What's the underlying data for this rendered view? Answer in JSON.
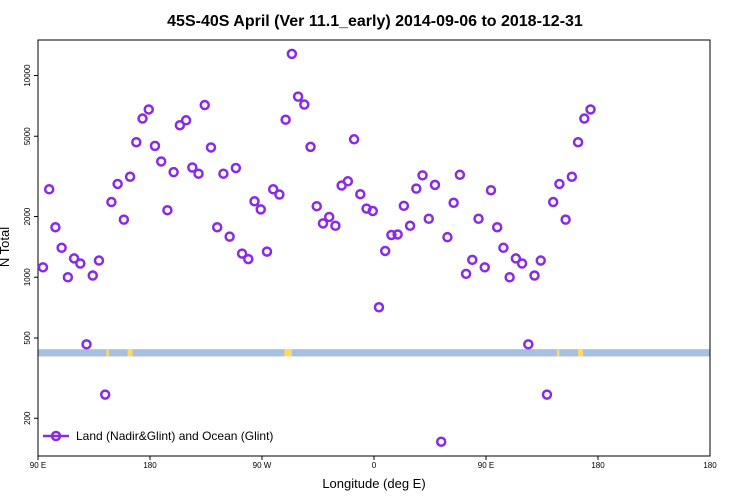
{
  "chart_data": {
    "type": "scatter",
    "title": "45S-40S April (Ver 11.1_early)   2014-09-06 to 2018-12-31",
    "xlabel": "Longitude (deg E)",
    "ylabel": "N Total",
    "y_scale": "log",
    "xlim": [
      -90,
      180
    ],
    "ylim": [
      130,
      15000
    ],
    "x_ticks": [
      {
        "value": -90,
        "label": "90 E"
      },
      {
        "value": -45,
        "label": "180"
      },
      {
        "value": 0,
        "label": "90 W"
      },
      {
        "value": 45,
        "label": "0"
      },
      {
        "value": 90,
        "label": "90 E"
      },
      {
        "value": 135,
        "label": "180"
      }
    ],
    "y_ticks": [
      {
        "value": 200,
        "label": "200"
      },
      {
        "value": 500,
        "label": "500"
      },
      {
        "value": 1000,
        "label": "1000"
      },
      {
        "value": 2000,
        "label": "2000"
      },
      {
        "value": 5000,
        "label": "5000"
      },
      {
        "value": 10000,
        "label": "10000"
      }
    ],
    "grid": false,
    "legend_position": "bottom-left",
    "series": [
      {
        "name": "Land (Nadir&Glint) and Ocean (Glint)",
        "color": "#8a2be2",
        "points": [
          [
            -88,
            1120
          ],
          [
            -85.5,
            2730
          ],
          [
            -83,
            1770
          ],
          [
            -80.5,
            1400
          ],
          [
            -78,
            1000
          ],
          [
            -75.5,
            1240
          ],
          [
            -73,
            1170
          ],
          [
            -70.5,
            465
          ],
          [
            -68,
            1020
          ],
          [
            -65.5,
            1210
          ],
          [
            -63,
            262
          ],
          [
            -60.5,
            2360
          ],
          [
            -58,
            2900
          ],
          [
            -55.5,
            1930
          ],
          [
            -53,
            3150
          ],
          [
            -50.5,
            4670
          ],
          [
            -48,
            6120
          ],
          [
            -45.5,
            6790
          ],
          [
            -43,
            4480
          ],
          [
            -40.5,
            3750
          ],
          [
            -38,
            2150
          ],
          [
            -35.5,
            3320
          ],
          [
            -33,
            5670
          ],
          [
            -30.5,
            6000
          ],
          [
            -28,
            3500
          ],
          [
            -25.5,
            3260
          ],
          [
            -23,
            7140
          ],
          [
            -20.5,
            4400
          ],
          [
            -18,
            1770
          ],
          [
            -15.5,
            3260
          ],
          [
            -13,
            1590
          ],
          [
            -10.5,
            3480
          ],
          [
            -8,
            1310
          ],
          [
            -5.5,
            1230
          ],
          [
            -3,
            2380
          ],
          [
            -0.5,
            2170
          ],
          [
            2,
            1340
          ],
          [
            4.5,
            2730
          ],
          [
            7,
            2570
          ],
          [
            9.5,
            6040
          ],
          [
            12,
            12800
          ],
          [
            14.5,
            7860
          ],
          [
            17,
            7180
          ],
          [
            19.5,
            4430
          ],
          [
            22,
            2250
          ],
          [
            24.5,
            1850
          ],
          [
            27,
            1990
          ],
          [
            29.5,
            1800
          ],
          [
            32,
            2850
          ],
          [
            34.5,
            2990
          ],
          [
            37,
            4830
          ],
          [
            39.5,
            2580
          ],
          [
            42,
            2190
          ],
          [
            44.5,
            2130
          ],
          [
            47,
            710
          ],
          [
            49.5,
            1350
          ],
          [
            52,
            1620
          ],
          [
            54.5,
            1630
          ],
          [
            57,
            2260
          ],
          [
            59.5,
            1800
          ],
          [
            62,
            2750
          ],
          [
            64.5,
            3200
          ],
          [
            67,
            1950
          ],
          [
            69.5,
            2870
          ],
          [
            72,
            153
          ],
          [
            74.5,
            1580
          ],
          [
            77,
            2340
          ],
          [
            79.5,
            3220
          ],
          [
            82,
            1040
          ],
          [
            84.5,
            1220
          ],
          [
            87,
            1950
          ],
          [
            89.5,
            1120
          ],
          [
            92,
            2700
          ],
          [
            94.5,
            1770
          ],
          [
            97,
            1400
          ],
          [
            99.5,
            1000
          ],
          [
            102,
            1240
          ],
          [
            104.5,
            1170
          ],
          [
            107,
            465
          ],
          [
            109.5,
            1020
          ],
          [
            112,
            1210
          ],
          [
            114.5,
            262
          ],
          [
            117,
            2360
          ],
          [
            119.5,
            2900
          ],
          [
            122,
            1930
          ],
          [
            124.5,
            3150
          ],
          [
            127,
            4670
          ],
          [
            129.5,
            6120
          ],
          [
            132,
            6790
          ]
        ]
      }
    ],
    "band": {
      "y_range": [
        405,
        440
      ],
      "ocean_color": "#a8c0e0",
      "land_color": "#ffd966",
      "land_segments": [
        [
          -62.5,
          -61.5
        ],
        [
          -54,
          -52
        ],
        [
          9,
          12
        ],
        [
          118.5,
          119.5
        ],
        [
          127,
          129
        ]
      ]
    }
  }
}
